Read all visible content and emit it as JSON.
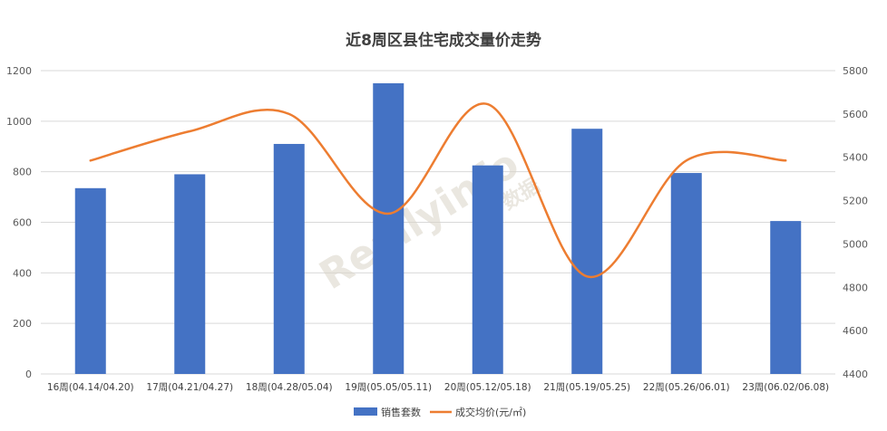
{
  "chart_data": {
    "type": "bar",
    "title": "近8周区县住宅成交量价走势",
    "categories": [
      "16周(04.14/04.20)",
      "17周(04.21/04.27)",
      "18周(04.28/05.04)",
      "19周(05.05/05.11)",
      "20周(05.12/05.18)",
      "21周(05.19/05.25)",
      "22周(05.26/06.01)",
      "23周(06.02/06.08)"
    ],
    "series": [
      {
        "name": "销售套数",
        "type": "bar",
        "axis": "left",
        "color": "#4472c4",
        "values": [
          735,
          790,
          910,
          1150,
          825,
          970,
          795,
          605
        ]
      },
      {
        "name": "成交均价(元/㎡)",
        "type": "line",
        "axis": "right",
        "color": "#ed7d31",
        "values": [
          5385,
          5520,
          5600,
          5140,
          5645,
          4850,
          5385,
          5385
        ]
      }
    ],
    "ylim": [
      0,
      1200
    ],
    "yticks": [
      0,
      200,
      400,
      600,
      800,
      1000,
      1200
    ],
    "y2lim": [
      4400,
      5800
    ],
    "y2ticks": [
      4400,
      4600,
      4800,
      5000,
      5200,
      5400,
      5600,
      5800
    ],
    "grid": true,
    "legend": "bottom-center"
  },
  "watermark": {
    "brand": "Reallyinfo",
    "subtitle": "数据"
  }
}
